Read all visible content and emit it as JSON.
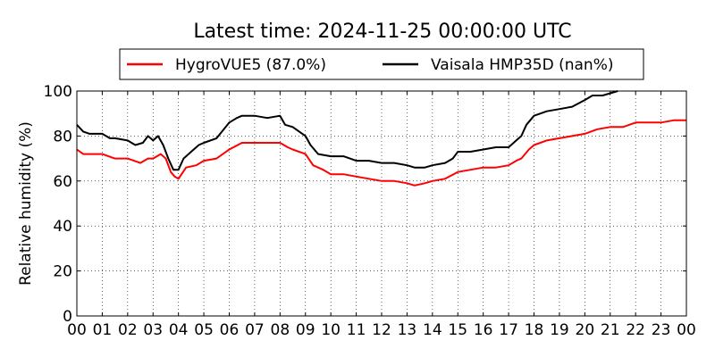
{
  "chart_data": {
    "type": "line",
    "title": "Latest time: 2024-11-25 00:00:00 UTC",
    "xlabel": "",
    "ylabel": "Relative humidity (%)",
    "xlim": [
      0,
      24
    ],
    "ylim": [
      0,
      100
    ],
    "x_ticks": [
      0,
      1,
      2,
      3,
      4,
      5,
      6,
      7,
      8,
      9,
      10,
      11,
      12,
      13,
      14,
      15,
      16,
      17,
      18,
      19,
      20,
      21,
      22,
      23,
      24
    ],
    "x_tick_labels": [
      "00",
      "01",
      "02",
      "03",
      "04",
      "05",
      "06",
      "07",
      "08",
      "09",
      "10",
      "11",
      "12",
      "13",
      "14",
      "15",
      "16",
      "17",
      "18",
      "19",
      "20",
      "21",
      "22",
      "23",
      "00"
    ],
    "y_ticks": [
      0,
      20,
      40,
      60,
      80,
      100
    ],
    "y_tick_labels": [
      "0",
      "20",
      "40",
      "60",
      "80",
      "100"
    ],
    "grid": true,
    "legend_position": "top-center",
    "series": [
      {
        "name": "HygroVUE5 (87.0%)",
        "color": "#ff0000",
        "x": [
          0,
          0.25,
          0.5,
          1,
          1.5,
          2,
          2.5,
          2.8,
          3,
          3.3,
          3.5,
          3.7,
          3.85,
          4,
          4.3,
          4.7,
          5,
          5.5,
          6,
          6.5,
          7,
          7.5,
          8,
          8.3,
          8.5,
          9,
          9.3,
          9.7,
          10,
          10.5,
          11,
          11.5,
          12,
          12.5,
          13,
          13.3,
          13.7,
          14,
          14.5,
          15,
          15.5,
          16,
          16.5,
          17,
          17.3,
          17.5,
          17.8,
          18,
          18.5,
          19,
          19.5,
          20,
          20.5,
          21,
          21.5,
          22,
          22.5,
          23,
          23.5,
          24
        ],
        "y": [
          74,
          72,
          72,
          72,
          70,
          70,
          68,
          70,
          70,
          72,
          70,
          64,
          62,
          61,
          66,
          67,
          69,
          70,
          74,
          77,
          77,
          77,
          77,
          75,
          74,
          72,
          67,
          65,
          63,
          63,
          62,
          61,
          60,
          60,
          59,
          58,
          59,
          60,
          61,
          64,
          65,
          66,
          66,
          67,
          69,
          70,
          74,
          76,
          78,
          79,
          80,
          81,
          83,
          84,
          84,
          86,
          86,
          86,
          87,
          87
        ]
      },
      {
        "name": "Vaisala HMP35D (nan%)",
        "color": "#000000",
        "x": [
          0,
          0.25,
          0.5,
          1,
          1.3,
          1.5,
          2,
          2.3,
          2.6,
          2.8,
          3,
          3.2,
          3.4,
          3.6,
          3.8,
          4,
          4.2,
          4.5,
          4.8,
          5,
          5.5,
          6,
          6.3,
          6.5,
          7,
          7.5,
          8,
          8.2,
          8.5,
          9,
          9.2,
          9.5,
          10,
          10.5,
          11,
          11.5,
          12,
          12.5,
          13,
          13.3,
          13.7,
          14,
          14.5,
          14.8,
          15,
          15.5,
          16,
          16.5,
          17,
          17.3,
          17.5,
          17.7,
          18,
          18.5,
          19,
          19.5,
          20,
          20.3,
          20.7,
          21,
          21.3
        ],
        "y": [
          85,
          82,
          81,
          81,
          79,
          79,
          78,
          76,
          77,
          80,
          78,
          80,
          76,
          70,
          65,
          65,
          70,
          73,
          76,
          77,
          79,
          86,
          88,
          89,
          89,
          88,
          89,
          85,
          84,
          80,
          76,
          72,
          71,
          71,
          69,
          69,
          68,
          68,
          67,
          66,
          66,
          67,
          68,
          70,
          73,
          73,
          74,
          75,
          75,
          78,
          80,
          85,
          89,
          91,
          92,
          93,
          96,
          98,
          98,
          99,
          100
        ]
      }
    ]
  }
}
